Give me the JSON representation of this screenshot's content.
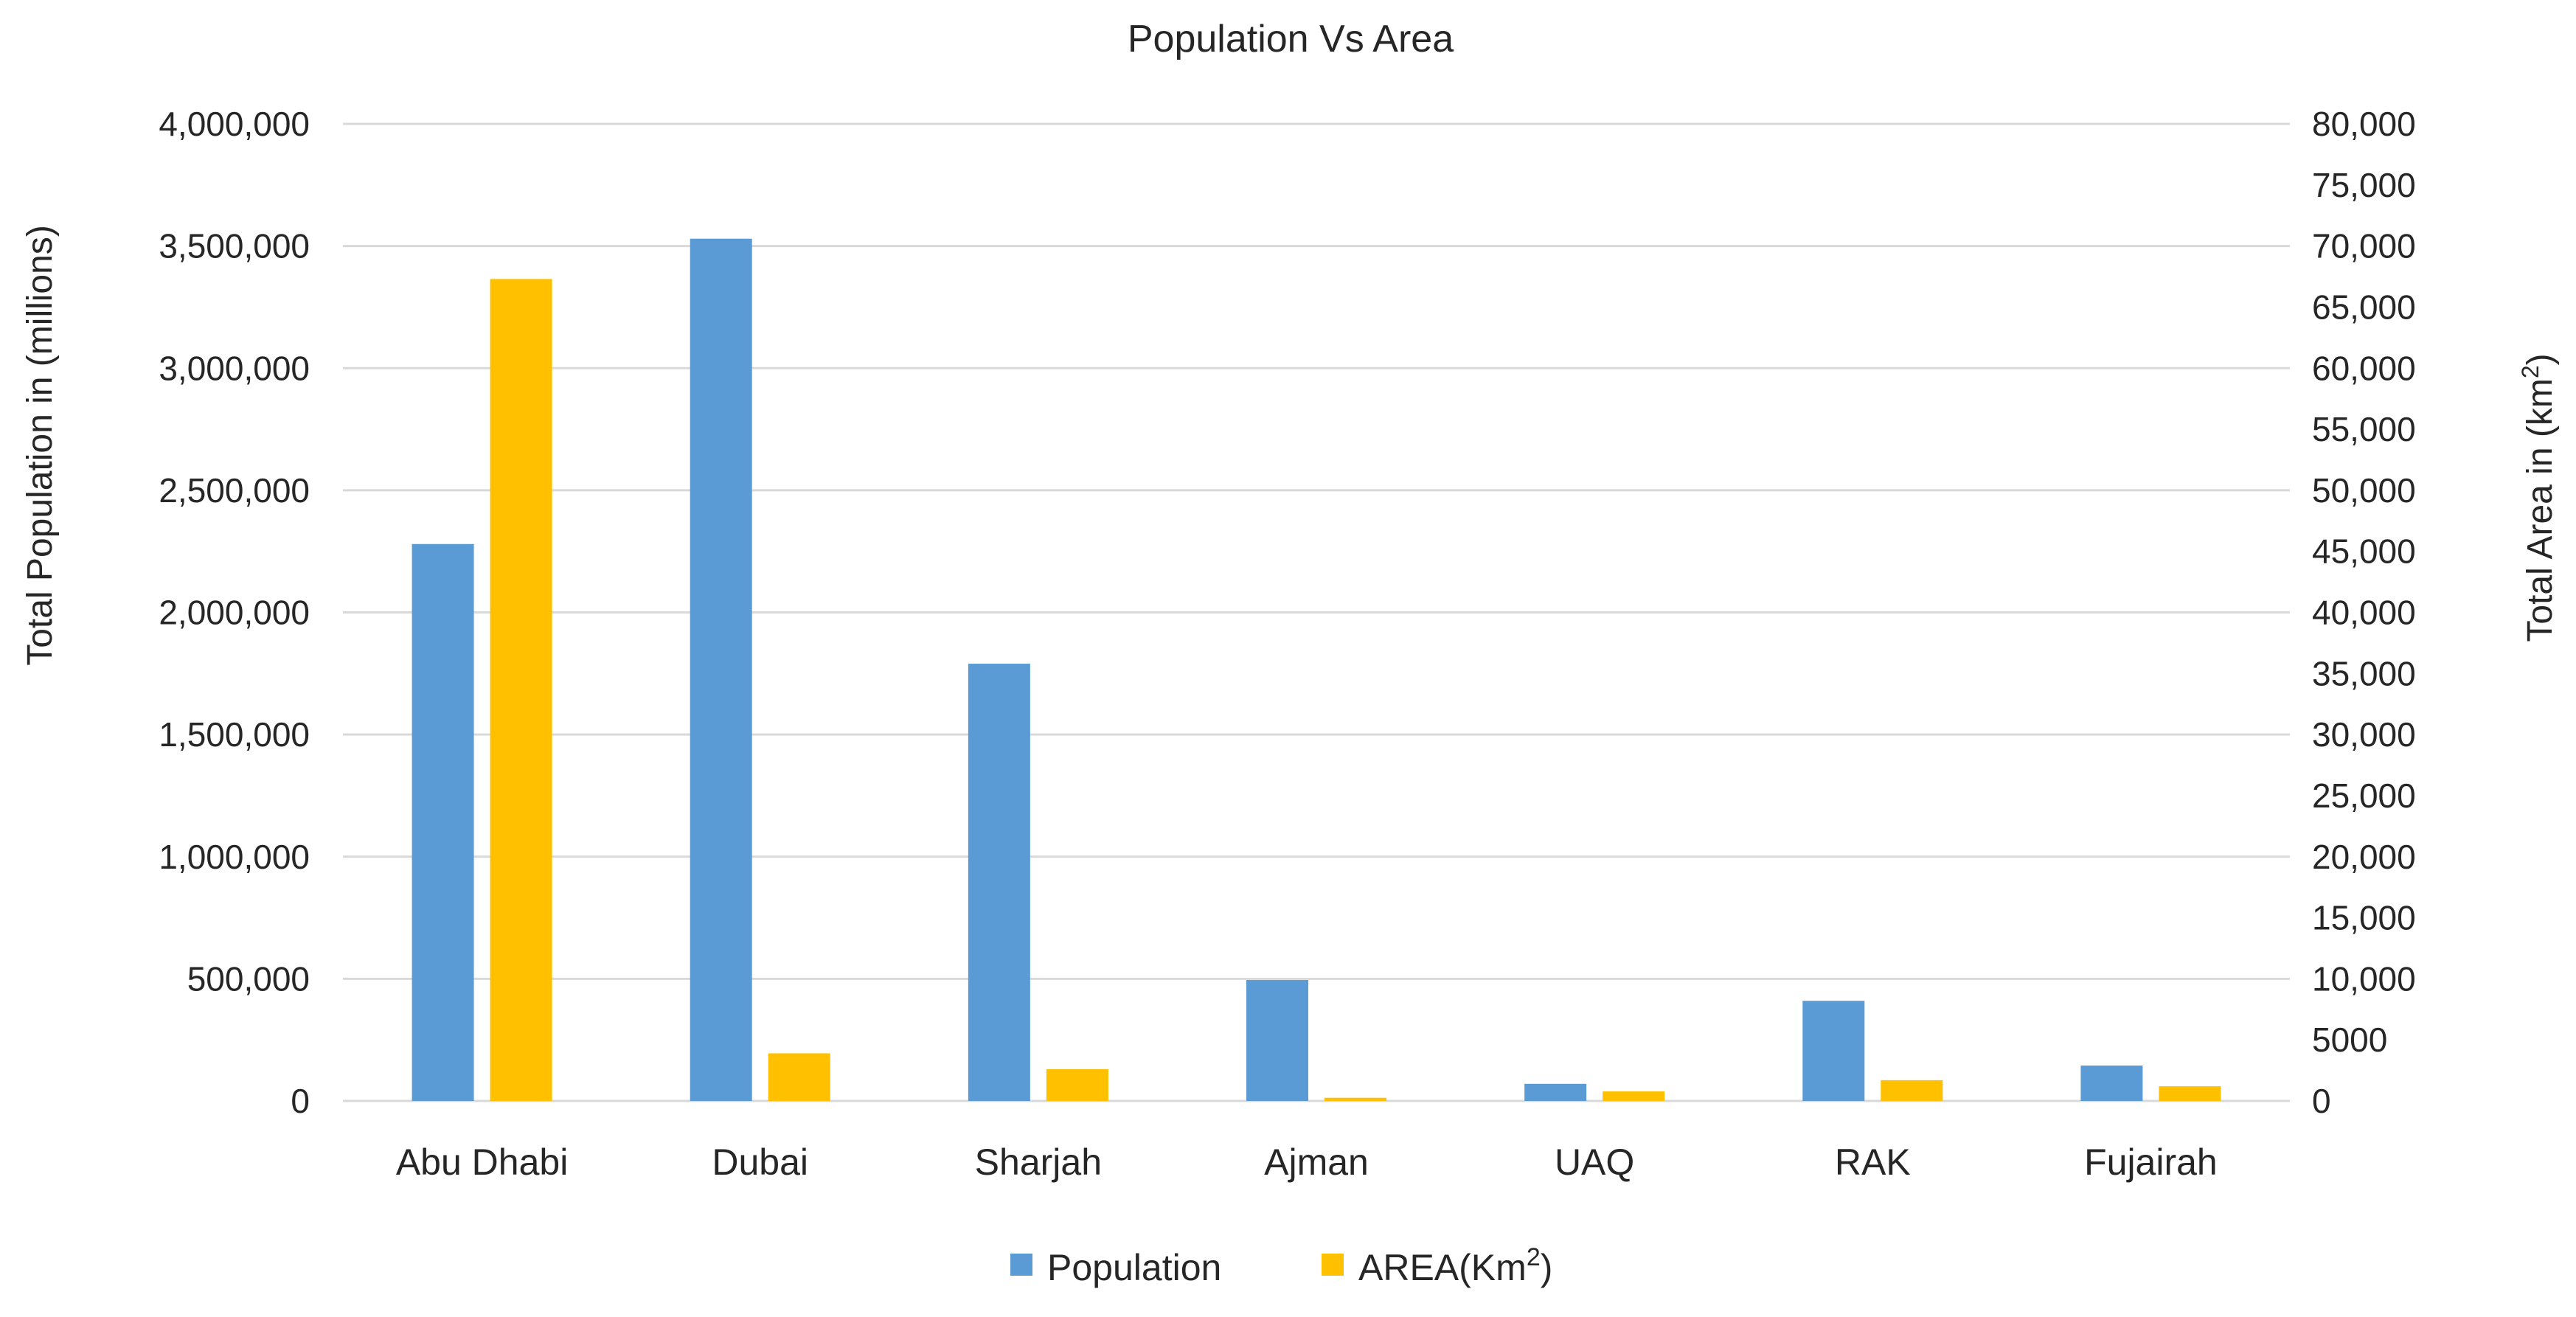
{
  "chart_data": {
    "type": "bar",
    "title": "Population Vs Area",
    "categories": [
      "Abu Dhabi",
      "Dubai",
      "Sharjah",
      "Ajman",
      "UAQ",
      "RAK",
      "Fujairah"
    ],
    "series": [
      {
        "name": "Population",
        "axis": "left",
        "color": "#5b9bd5",
        "values": [
          2280000,
          3530000,
          1790000,
          495000,
          70000,
          410000,
          145000
        ]
      },
      {
        "name": "AREA(Km2)",
        "axis": "right",
        "color": "#ffc000",
        "values": [
          67300,
          3900,
          2600,
          260,
          780,
          1700,
          1200
        ]
      }
    ],
    "ylabel": "Total Population in (millions)",
    "ylabel_right": "Total Area in (km2)",
    "ylim": [
      0,
      4000000
    ],
    "ylim_right": [
      0,
      80000
    ],
    "yticks": [
      0,
      500000,
      1000000,
      1500000,
      2000000,
      2500000,
      3000000,
      3500000,
      4000000
    ],
    "yticks_right": [
      0,
      5000,
      10000,
      15000,
      20000,
      25000,
      30000,
      35000,
      40000,
      45000,
      50000,
      55000,
      60000,
      65000,
      70000,
      75000,
      80000
    ],
    "ytick_labels": [
      "0",
      "500,000",
      "1,000,000",
      "1,500,000",
      "2,000,000",
      "2,500,000",
      "3,000,000",
      "3,500,000",
      "4,000,000"
    ],
    "ytick_labels_right": [
      "0",
      "5000",
      "10,000",
      "15,000",
      "20,000",
      "25,000",
      "30,000",
      "35,000",
      "40,000",
      "45,000",
      "50,000",
      "55,000",
      "60,000",
      "65,000",
      "70,000",
      "75,000",
      "80,000"
    ],
    "legend": {
      "position": "bottom",
      "items": [
        {
          "label": "Population",
          "color": "#5b9bd5"
        },
        {
          "label": "AREA(Km",
          "sup": "2",
          "tail": ")",
          "color": "#ffc000"
        }
      ]
    },
    "grid": true
  }
}
